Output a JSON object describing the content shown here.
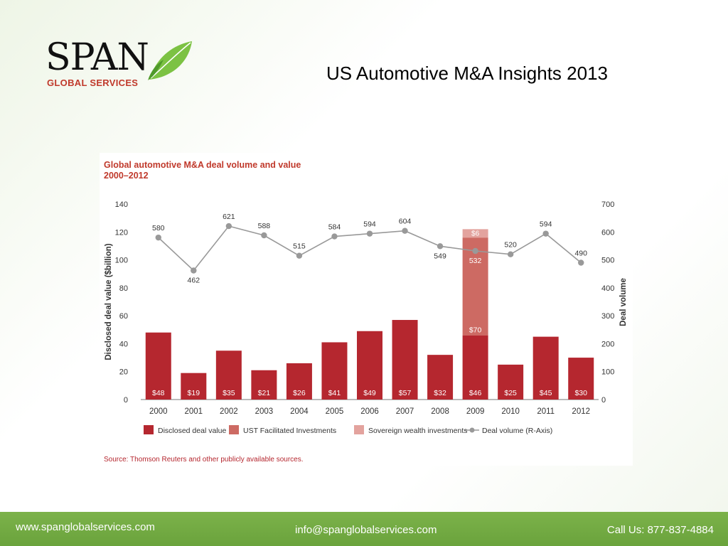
{
  "logo": {
    "word": "SPAN",
    "sub": "GLOBAL SERVICES"
  },
  "slide_title": "US Automotive M&A Insights 2013",
  "chart_data": {
    "type": "bar",
    "title": "Global automotive M&A deal volume and value",
    "subtitle": "2000–2012",
    "categories": [
      "2000",
      "2001",
      "2002",
      "2003",
      "2004",
      "2005",
      "2006",
      "2007",
      "2008",
      "2009",
      "2010",
      "2011",
      "2012"
    ],
    "series": [
      {
        "name": "Disclosed deal value",
        "kind": "bar",
        "color": "#b5272f",
        "values": [
          48,
          19,
          35,
          21,
          26,
          41,
          49,
          57,
          32,
          46,
          25,
          45,
          30
        ],
        "labels": [
          "$48",
          "$19",
          "$35",
          "$21",
          "$26",
          "$41",
          "$49",
          "$57",
          "$32",
          "$46",
          "$25",
          "$45",
          "$30"
        ]
      },
      {
        "name": "UST Facilitated Investments",
        "kind": "bar",
        "color": "#cd6a63",
        "values": [
          0,
          0,
          0,
          0,
          0,
          0,
          0,
          0,
          0,
          70,
          0,
          0,
          0
        ],
        "labels": [
          "",
          "",
          "",
          "",
          "",
          "",
          "",
          "",
          "",
          "$70",
          "",
          "",
          ""
        ]
      },
      {
        "name": "Sovereign wealth investments",
        "kind": "bar",
        "color": "#e3a39e",
        "values": [
          0,
          0,
          0,
          0,
          0,
          0,
          0,
          0,
          0,
          6,
          0,
          0,
          0
        ],
        "labels": [
          "",
          "",
          "",
          "",
          "",
          "",
          "",
          "",
          "",
          "$6",
          "",
          "",
          ""
        ]
      },
      {
        "name": "Deal volume (R-Axis)",
        "kind": "line",
        "color": "#999999",
        "values": [
          580,
          462,
          621,
          588,
          515,
          584,
          594,
          604,
          549,
          532,
          520,
          594,
          490
        ],
        "labels": [
          "580",
          "462",
          "621",
          "588",
          "515",
          "584",
          "594",
          "604",
          "549",
          "532",
          "520",
          "594",
          "490"
        ]
      }
    ],
    "ylabel": "Disclosed deal value ($billion)",
    "y2label": "Deal volume",
    "ylim": [
      0,
      140
    ],
    "y2lim": [
      0,
      700
    ],
    "yticks": [
      "0",
      "20",
      "40",
      "60",
      "80",
      "100",
      "120",
      "140"
    ],
    "y2ticks": [
      "0",
      "100",
      "200",
      "300",
      "400",
      "500",
      "600",
      "700"
    ],
    "grid": false,
    "legend": "bottom",
    "source": "Source: Thomson Reuters and other publicly available sources."
  },
  "footer": {
    "website": "www.spanglobalservices.com",
    "email": "info@spanglobalservices.com",
    "phone": "Call Us: 877-837-4884"
  }
}
